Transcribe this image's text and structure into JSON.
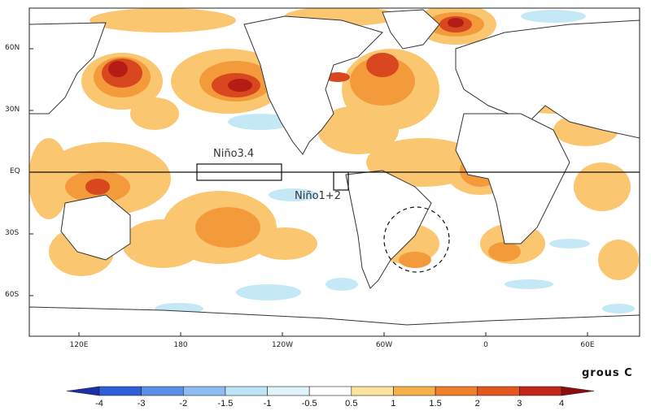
{
  "map": {
    "lat_labels": [
      "60N",
      "30N",
      "EQ",
      "30S",
      "60S"
    ],
    "lon_labels": [
      "120E",
      "180",
      "120W",
      "60W",
      "0",
      "60E"
    ],
    "regions": {
      "nino34": "Niño3.4",
      "nino12": "Niño1+2"
    },
    "units": "grous C"
  },
  "colorbar": {
    "ticks": [
      "-4",
      "-3",
      "-2",
      "-1.5",
      "-1",
      "-0.5",
      "0.5",
      "1",
      "1.5",
      "2",
      "3",
      "4"
    ],
    "colors": [
      "#1a2fa8",
      "#2f5fd6",
      "#5a8ee8",
      "#8dbcf0",
      "#bde3f7",
      "#dff3fb",
      "#ffffff",
      "#fde3a0",
      "#f8b04a",
      "#f07f2a",
      "#e2571e",
      "#c4261b",
      "#8e0b10"
    ]
  }
}
